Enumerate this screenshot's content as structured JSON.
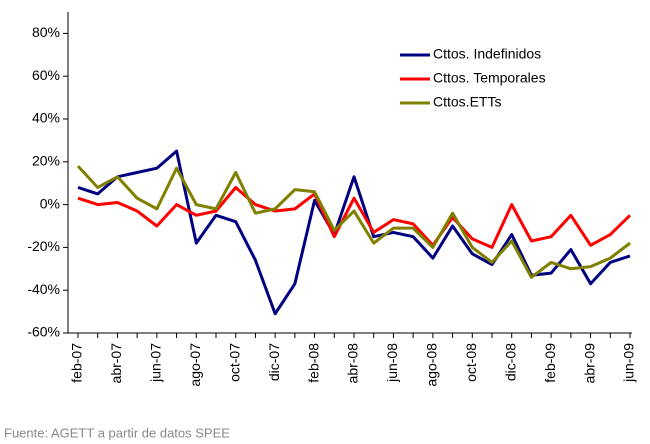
{
  "chart_data": {
    "type": "line",
    "categories": [
      "feb-07",
      null,
      "abr-07",
      null,
      "jun-07",
      null,
      "ago-07",
      null,
      "oct-07",
      null,
      "dic-07",
      null,
      "feb-08",
      null,
      "abr-08",
      null,
      "jun-08",
      null,
      "ago-08",
      null,
      "oct-08",
      null,
      "dic-08",
      null,
      "feb-09",
      null,
      "abr-09",
      null,
      "jun-09"
    ],
    "series": [
      {
        "name": "Cttos. Indefinidos",
        "color": "#000080",
        "values": [
          8,
          5,
          13,
          15,
          17,
          25,
          -18,
          -5,
          -8,
          -26,
          -51,
          -37,
          2,
          -14,
          13,
          -15,
          -13,
          -15,
          -25,
          -10,
          -23,
          -28,
          -14,
          -33,
          -32,
          -21,
          -37,
          -27,
          -24
        ]
      },
      {
        "name": "Cttos. Temporales",
        "color": "#ff0000",
        "values": [
          3,
          0,
          1,
          -3,
          -10,
          0,
          -5,
          -3,
          8,
          0,
          -3,
          -2,
          5,
          -15,
          3,
          -13,
          -7,
          -9,
          -19,
          -6,
          -16,
          -20,
          0,
          -17,
          -15,
          -5,
          -19,
          -14,
          -5
        ]
      },
      {
        "name": "Cttos.ETTs",
        "color": "#808000",
        "values": [
          18,
          8,
          13,
          3,
          -2,
          17,
          0,
          -2,
          15,
          -4,
          -2,
          7,
          6,
          -12,
          -3,
          -18,
          -11,
          -11,
          -20,
          -4,
          -20,
          -27,
          -17,
          -34,
          -27,
          -30,
          -29,
          -25,
          -18
        ]
      }
    ],
    "ylim": [
      -60,
      90
    ],
    "yticks": [
      {
        "value": -60,
        "label": "-60%"
      },
      {
        "value": -40,
        "label": "-40%"
      },
      {
        "value": -20,
        "label": "-20%"
      },
      {
        "value": 0,
        "label": "0%"
      },
      {
        "value": 20,
        "label": "20%"
      },
      {
        "value": 40,
        "label": "40%"
      },
      {
        "value": 60,
        "label": "60%"
      },
      {
        "value": 80,
        "label": "80%"
      }
    ],
    "legend": "top-right",
    "source": "Fuente: AGETT a partir de datos SPEE"
  }
}
